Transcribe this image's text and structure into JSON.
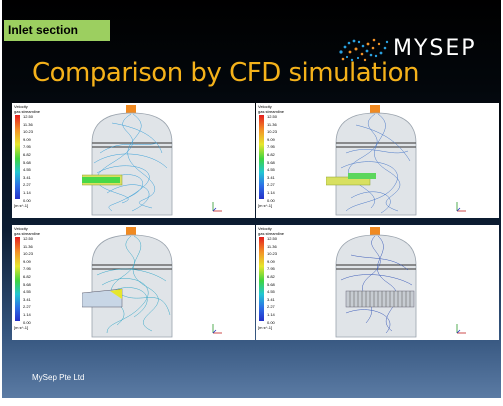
{
  "slide": {
    "section_tag": "Inlet section",
    "title": "Comparison by CFD simulation",
    "logo_text": "MYSEP",
    "footer": "MySep Pte Ltd"
  },
  "legend": {
    "title_line1": "Velocity",
    "title_line2": "gas streamline",
    "ticks": [
      "12.50",
      "11.36",
      "10.23",
      "9.09",
      "7.95",
      "6.82",
      "5.68",
      "4.55",
      "3.41",
      "2.27",
      "1.14",
      "0.00"
    ],
    "units": "[m s^-1]"
  },
  "panels": [
    {
      "inlet": "plain pipe",
      "streamline_color": "#3aa0d8"
    },
    {
      "inlet": "slotted pipe",
      "streamline_color": "#4a78c8"
    },
    {
      "inlet": "half-open pipe",
      "streamline_color": "#35a8c8"
    },
    {
      "inlet": "vane inlet device",
      "streamline_color": "#3858b8"
    }
  ],
  "colors": {
    "title": "#f5b21a",
    "tag_bg": "#9ccf60",
    "logo_dot_orange": "#f29227",
    "logo_dot_blue": "#2aa0e0"
  }
}
